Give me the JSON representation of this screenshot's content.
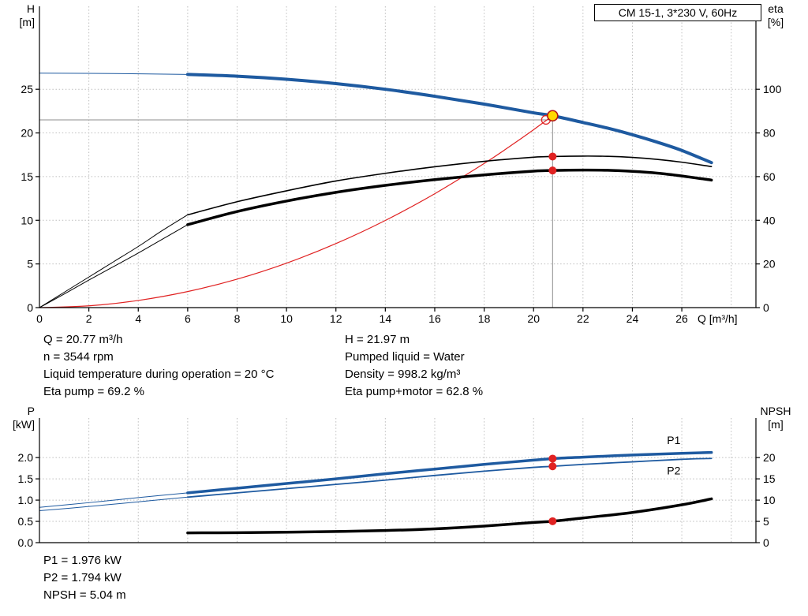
{
  "title_box": "CM 15-1, 3*230 V, 60Hz",
  "colors": {
    "blue": "#1e5aa0",
    "black": "#000000",
    "red": "#e02222",
    "grid": "#bdbdbd",
    "helper": "#8c8c8c",
    "duty_fill": "#ffd900",
    "duty_stroke": "#b41414"
  },
  "annotations": {
    "left": [
      "Q = 20.77 m³/h",
      "n = 3544 rpm",
      "Liquid temperature during operation = 20 °C",
      "Eta pump = 69.2 %"
    ],
    "right": [
      "H = 21.97 m",
      "Pumped liquid = Water",
      "Density = 998.2 kg/m³",
      "Eta pump+motor = 62.8 %"
    ],
    "bottom": [
      "P1 = 1.976 kW",
      "P2 = 1.794 kW",
      "NPSH = 5.04 m"
    ]
  },
  "chart_data": [
    {
      "id": "qh-eta",
      "type": "line",
      "title": "CM 15-1, 3*230 V, 60Hz",
      "xlabel": "Q [m³/h]",
      "ylabel_left": [
        "H",
        "[m]"
      ],
      "ylabel_right": [
        "eta",
        "[%]"
      ],
      "xlim": [
        0,
        29
      ],
      "ylim_left": [
        0,
        34.5
      ],
      "right_axis_scale": 0.25,
      "x_ticks": [
        0,
        2,
        4,
        6,
        8,
        10,
        12,
        14,
        16,
        18,
        20,
        22,
        24,
        26
      ],
      "x_gridlines": [
        2,
        4,
        6,
        8,
        10,
        12,
        14,
        16,
        18,
        20,
        22,
        24,
        26,
        28
      ],
      "y_ticks_left": [
        {
          "v": 0,
          "label": "0"
        },
        {
          "v": 5,
          "label": "5"
        },
        {
          "v": 10,
          "label": "10"
        },
        {
          "v": 15,
          "label": "15"
        },
        {
          "v": 20,
          "label": "20"
        },
        {
          "v": 25,
          "label": "25"
        }
      ],
      "y_ticks_right": [
        {
          "v": 0,
          "label": "0"
        },
        {
          "v": 20,
          "label": "20"
        },
        {
          "v": 40,
          "label": "40"
        },
        {
          "v": 60,
          "label": "60"
        },
        {
          "v": 80,
          "label": "80"
        },
        {
          "v": 100,
          "label": "100"
        }
      ],
      "series": [
        {
          "name": "system-curve",
          "axis": "left",
          "color": "red",
          "width": 1.2,
          "points": [
            [
              0,
              0
            ],
            [
              2,
              0.2
            ],
            [
              4,
              0.82
            ],
            [
              6,
              1.84
            ],
            [
              8,
              3.26
            ],
            [
              10,
              5.09
            ],
            [
              12,
              7.33
            ],
            [
              14,
              9.98
            ],
            [
              16,
              13.04
            ],
            [
              18,
              16.5
            ],
            [
              19,
              18.39
            ],
            [
              20,
              20.37
            ],
            [
              20.77,
              21.97
            ]
          ]
        },
        {
          "name": "eta-pump-lead",
          "axis": "right",
          "color": "black",
          "width": 1,
          "points": [
            [
              0,
              0
            ],
            [
              1,
              7
            ],
            [
              2,
              14
            ],
            [
              3,
              21
            ],
            [
              4,
              28
            ],
            [
              5,
              35.5
            ],
            [
              6,
              42.5
            ]
          ]
        },
        {
          "name": "eta-pump",
          "axis": "right",
          "color": "black",
          "width": 1.6,
          "points": [
            [
              6,
              42.5
            ],
            [
              8,
              48.5
            ],
            [
              10,
              53.5
            ],
            [
              12,
              58
            ],
            [
              14,
              61.5
            ],
            [
              16,
              64.5
            ],
            [
              18,
              67
            ],
            [
              20,
              68.9
            ],
            [
              20.77,
              69.2
            ],
            [
              22,
              69.4
            ],
            [
              23,
              69.3
            ],
            [
              24,
              68.8
            ],
            [
              25,
              67.9
            ],
            [
              26,
              66.6
            ],
            [
              27.2,
              64.6
            ]
          ]
        },
        {
          "name": "eta-pump-motor-lead",
          "axis": "right",
          "color": "black",
          "width": 1,
          "points": [
            [
              0,
              0
            ],
            [
              1,
              6.2
            ],
            [
              2,
              12.6
            ],
            [
              3,
              18.8
            ],
            [
              4,
              25
            ],
            [
              5,
              31.5
            ],
            [
              6,
              38
            ]
          ]
        },
        {
          "name": "eta-pump-motor",
          "axis": "right",
          "color": "black",
          "width": 3.5,
          "points": [
            [
              6,
              38
            ],
            [
              8,
              44
            ],
            [
              10,
              48.8
            ],
            [
              12,
              52.8
            ],
            [
              14,
              56
            ],
            [
              16,
              58.6
            ],
            [
              18,
              60.8
            ],
            [
              20,
              62.5
            ],
            [
              20.77,
              62.8
            ],
            [
              22,
              63
            ],
            [
              23,
              62.9
            ],
            [
              24,
              62.4
            ],
            [
              25,
              61.6
            ],
            [
              26,
              60.3
            ],
            [
              27.2,
              58.4
            ]
          ]
        },
        {
          "name": "head-lead",
          "axis": "left",
          "color": "blue",
          "width": 1,
          "points": [
            [
              0,
              26.85
            ],
            [
              3,
              26.8
            ],
            [
              6,
              26.7
            ]
          ]
        },
        {
          "name": "head",
          "axis": "left",
          "color": "blue",
          "width": 4,
          "points": [
            [
              6,
              26.7
            ],
            [
              8,
              26.5
            ],
            [
              10,
              26.15
            ],
            [
              12,
              25.65
            ],
            [
              14,
              25.0
            ],
            [
              16,
              24.2
            ],
            [
              18,
              23.3
            ],
            [
              20,
              22.3
            ],
            [
              20.77,
              21.97
            ],
            [
              22,
              21.2
            ],
            [
              23,
              20.55
            ],
            [
              24,
              19.8
            ],
            [
              25,
              18.95
            ],
            [
              26,
              18.0
            ],
            [
              27.2,
              16.6
            ]
          ]
        }
      ],
      "markers": [
        {
          "kind": "hline",
          "y": 21.5,
          "x0": 0,
          "x1": 20.77,
          "axis": "left",
          "name": "duty-crosshair-horizontal"
        },
        {
          "kind": "vline",
          "x": 20.77,
          "y0": 0,
          "y1": 22.4,
          "axis": "left",
          "name": "duty-crosshair-vertical"
        },
        {
          "kind": "open",
          "x": 20.5,
          "y": 21.5,
          "axis": "left",
          "name": "requested-duty-point"
        },
        {
          "kind": "duty",
          "x": 20.77,
          "y": 21.97,
          "axis": "left",
          "name": "operating-point"
        },
        {
          "kind": "dot",
          "x": 20.77,
          "y": 69.2,
          "axis": "right",
          "name": "eta-pump-point"
        },
        {
          "kind": "dot",
          "x": 20.77,
          "y": 62.8,
          "axis": "right",
          "name": "eta-pump-motor-point"
        }
      ],
      "duty_point": {
        "Q": 20.77,
        "H": 21.97,
        "eta_pump": 69.2,
        "eta_pump_motor": 62.8,
        "n_rpm": 3544
      }
    },
    {
      "id": "power-npsh",
      "type": "line",
      "xlabel": "",
      "ylabel_left": [
        "P",
        "[kW]"
      ],
      "ylabel_right": [
        "NPSH",
        "[m]"
      ],
      "xlim": [
        0,
        29
      ],
      "ylim_left": [
        0,
        2.93
      ],
      "right_axis_scale": 0.1,
      "x_ticks": [],
      "x_gridlines": [
        2,
        4,
        6,
        8,
        10,
        12,
        14,
        16,
        18,
        20,
        22,
        24,
        26,
        28
      ],
      "y_ticks_left": [
        {
          "v": 0,
          "label": "0.0"
        },
        {
          "v": 0.5,
          "label": "0.5"
        },
        {
          "v": 1,
          "label": "1.0"
        },
        {
          "v": 1.5,
          "label": "1.5"
        },
        {
          "v": 2,
          "label": "2.0"
        }
      ],
      "y_ticks_right": [
        {
          "v": 0,
          "label": "0"
        },
        {
          "v": 5,
          "label": "5"
        },
        {
          "v": 10,
          "label": "10"
        },
        {
          "v": 15,
          "label": "15"
        },
        {
          "v": 20,
          "label": "20"
        }
      ],
      "series": [
        {
          "name": "p1-lead",
          "axis": "left",
          "color": "blue",
          "width": 1,
          "points": [
            [
              0,
              0.83
            ],
            [
              2,
              0.94
            ],
            [
              4,
              1.06
            ],
            [
              6,
              1.17
            ]
          ]
        },
        {
          "name": "p1",
          "axis": "left",
          "color": "blue",
          "width": 3.5,
          "label": "P1",
          "label_pos": [
            25.4,
            2.32
          ],
          "points": [
            [
              6,
              1.17
            ],
            [
              8,
              1.28
            ],
            [
              10,
              1.39
            ],
            [
              12,
              1.5
            ],
            [
              14,
              1.62
            ],
            [
              16,
              1.73
            ],
            [
              18,
              1.84
            ],
            [
              20,
              1.94
            ],
            [
              20.77,
              1.976
            ],
            [
              22,
              2.01
            ],
            [
              24,
              2.06
            ],
            [
              26,
              2.1
            ],
            [
              27.2,
              2.12
            ]
          ]
        },
        {
          "name": "p2-lead",
          "axis": "left",
          "color": "blue",
          "width": 1,
          "points": [
            [
              0,
              0.75
            ],
            [
              2,
              0.85
            ],
            [
              4,
              0.96
            ],
            [
              6,
              1.07
            ]
          ]
        },
        {
          "name": "p2",
          "axis": "left",
          "color": "blue",
          "width": 1.8,
          "label": "P2",
          "label_pos": [
            25.4,
            1.6
          ],
          "points": [
            [
              6,
              1.07
            ],
            [
              8,
              1.17
            ],
            [
              10,
              1.27
            ],
            [
              12,
              1.37
            ],
            [
              14,
              1.47
            ],
            [
              16,
              1.58
            ],
            [
              18,
              1.68
            ],
            [
              20,
              1.77
            ],
            [
              20.77,
              1.794
            ],
            [
              22,
              1.84
            ],
            [
              24,
              1.9
            ],
            [
              26,
              1.96
            ],
            [
              27.2,
              1.98
            ]
          ]
        },
        {
          "name": "npsh",
          "axis": "right",
          "color": "black",
          "width": 3.5,
          "points": [
            [
              6,
              2.3
            ],
            [
              8,
              2.35
            ],
            [
              10,
              2.45
            ],
            [
              12,
              2.62
            ],
            [
              14,
              2.85
            ],
            [
              16,
              3.25
            ],
            [
              18,
              3.9
            ],
            [
              20,
              4.75
            ],
            [
              20.77,
              5.04
            ],
            [
              22,
              5.8
            ],
            [
              24,
              7.1
            ],
            [
              26,
              8.9
            ],
            [
              27.2,
              10.3
            ]
          ]
        }
      ],
      "markers": [
        {
          "kind": "dot",
          "x": 20.77,
          "y": 1.976,
          "axis": "left",
          "name": "p1-point"
        },
        {
          "kind": "dot",
          "x": 20.77,
          "y": 1.794,
          "axis": "left",
          "name": "p2-point"
        },
        {
          "kind": "dot",
          "x": 20.77,
          "y": 5.04,
          "axis": "right",
          "name": "npsh-point"
        }
      ],
      "duty_point": {
        "Q": 20.77,
        "P1_kW": 1.976,
        "P2_kW": 1.794,
        "NPSH_m": 5.04
      }
    }
  ]
}
